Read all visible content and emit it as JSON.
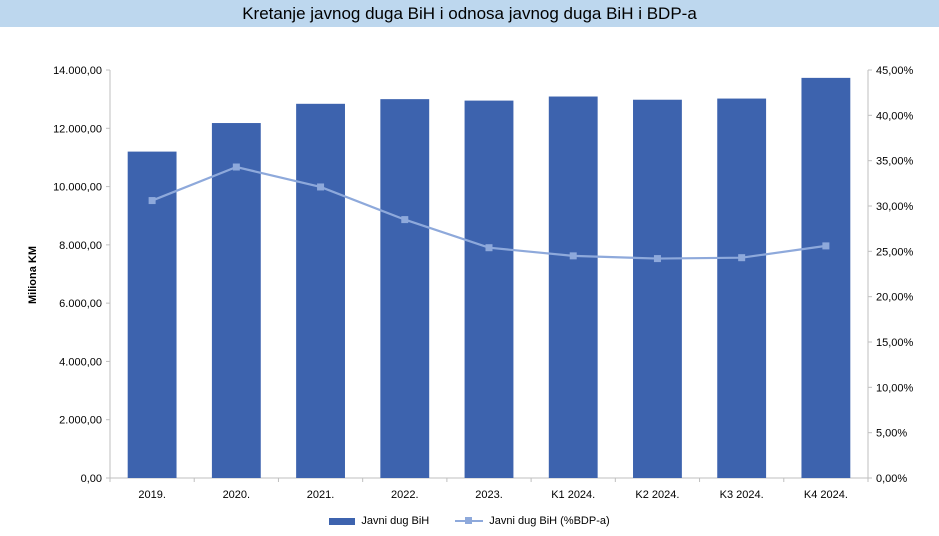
{
  "chart_data": {
    "type": "bar",
    "title": "Kretanje javnog duga BiH i odnosa javnog duga BiH i BDP-a",
    "ylabel": "Miliona KM",
    "categories": [
      "2019.",
      "2020.",
      "2021.",
      "2022.",
      "2023.",
      "K1 2024.",
      "K2 2024.",
      "K3 2024.",
      "K4 2024."
    ],
    "series": [
      {
        "name": "Javni dug BiH",
        "type": "bar",
        "axis": "left",
        "color": "#3d63ae",
        "values": [
          11200,
          12180,
          12840,
          13000,
          12950,
          13090,
          12980,
          13020,
          13730
        ]
      },
      {
        "name": "Javni dug BiH (%BDP-a)",
        "type": "line",
        "axis": "right",
        "color": "#8ea9db",
        "values": [
          30.6,
          34.3,
          32.1,
          28.5,
          25.4,
          24.5,
          24.2,
          24.3,
          25.6
        ]
      }
    ],
    "ylim": [
      0,
      14000
    ],
    "yticks": [
      "0,00",
      "2.000,00",
      "4.000,00",
      "6.000,00",
      "8.000,00",
      "10.000,00",
      "12.000,00",
      "14.000,00"
    ],
    "y2lim": [
      0,
      45
    ],
    "y2ticks": [
      "0,00%",
      "5,00%",
      "10,00%",
      "15,00%",
      "20,00%",
      "25,00%",
      "30,00%",
      "35,00%",
      "40,00%",
      "45,00%"
    ],
    "grid": false,
    "legend": "bottom"
  }
}
